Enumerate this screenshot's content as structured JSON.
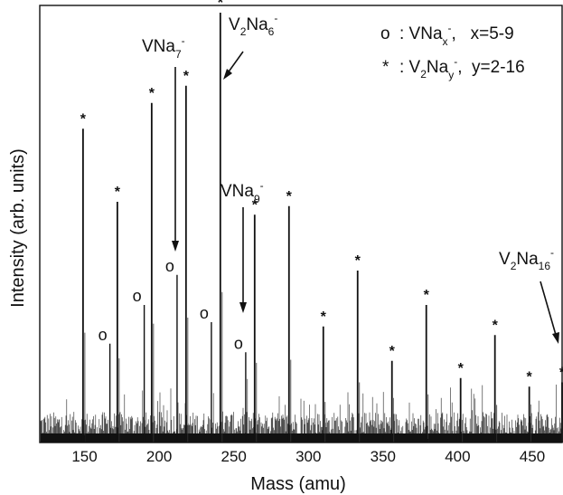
{
  "chart_data": {
    "type": "line",
    "xlabel": "Mass (amu)",
    "ylabel": "Intensity (arb. units)",
    "xlim": [
      120,
      470
    ],
    "ylim": [
      0,
      100
    ],
    "x_ticks": [
      150,
      200,
      250,
      300,
      350,
      400,
      450
    ],
    "grid": false,
    "legend": [
      {
        "marker": "o",
        "text_parts": [
          ": VNa",
          "x",
          "-",
          ",   x=5-9"
        ]
      },
      {
        "marker": "*",
        "text_parts": [
          ": V",
          "2",
          "Na",
          "y",
          "-",
          ",  y=2-16"
        ]
      }
    ],
    "star_peaks": [
      {
        "x": 149,
        "y": 73
      },
      {
        "x": 172,
        "y": 56
      },
      {
        "x": 195,
        "y": 79
      },
      {
        "x": 218,
        "y": 83
      },
      {
        "x": 241,
        "y": 100
      },
      {
        "x": 264,
        "y": 53
      },
      {
        "x": 287,
        "y": 55
      },
      {
        "x": 310,
        "y": 27
      },
      {
        "x": 333,
        "y": 40
      },
      {
        "x": 356,
        "y": 19
      },
      {
        "x": 379,
        "y": 32
      },
      {
        "x": 402,
        "y": 15
      },
      {
        "x": 425,
        "y": 25
      },
      {
        "x": 448,
        "y": 13
      },
      {
        "x": 470,
        "y": 14
      }
    ],
    "circle_peaks": [
      {
        "x": 167,
        "y": 23
      },
      {
        "x": 190,
        "y": 32
      },
      {
        "x": 212,
        "y": 39
      },
      {
        "x": 235,
        "y": 28
      },
      {
        "x": 258,
        "y": 21
      }
    ],
    "annotations": [
      {
        "id": "v2na6",
        "parts": [
          "V",
          "2",
          "Na",
          "6",
          "-"
        ],
        "peak_x": 241
      },
      {
        "id": "vna7",
        "parts": [
          "VNa",
          "7",
          "-"
        ],
        "peak_x": 212
      },
      {
        "id": "vna9",
        "parts": [
          "VNa",
          "9",
          "-"
        ],
        "peak_x": 258
      },
      {
        "id": "v2na16",
        "parts": [
          "V",
          "2",
          "Na",
          "16",
          "-"
        ],
        "peak_x": 470
      }
    ]
  }
}
